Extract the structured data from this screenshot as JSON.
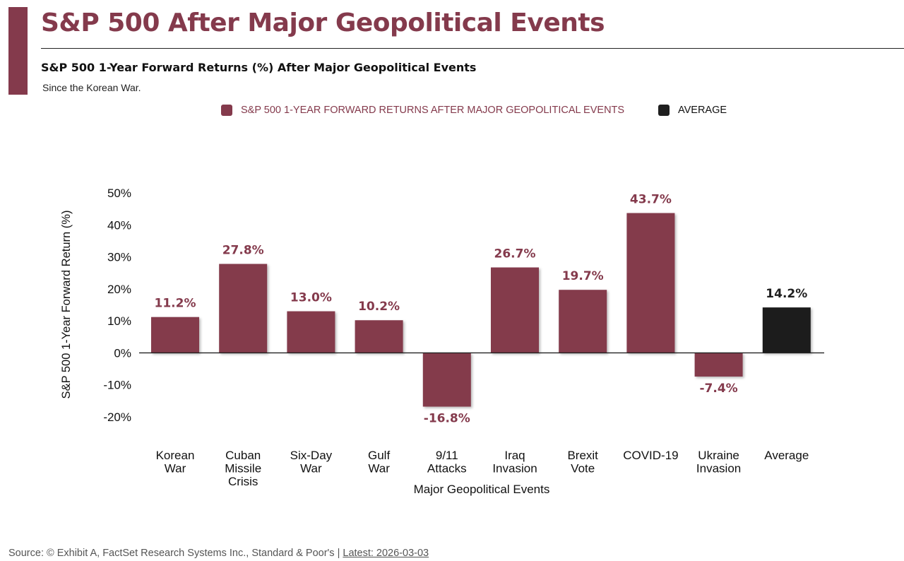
{
  "header": {
    "title": "S&P 500 After Major Geopolitical Events",
    "subtitle": "S&P 500 1-Year Forward Returns (%) After Major Geopolitical Events",
    "note": "Since the Korean War."
  },
  "legend": {
    "series_label": "S&P 500 1-YEAR FORWARD RETURNS AFTER MAJOR GEOPOLITICAL EVENTS",
    "average_label": "AVERAGE"
  },
  "colors": {
    "series": "#843a4c",
    "average": "#1f1f1f",
    "axis": "#222222"
  },
  "chart_data": {
    "type": "bar",
    "title": "S&P 500 1-Year Forward Returns (%) After Major Geopolitical Events",
    "xlabel": "Major Geopolitical Events",
    "ylabel": "S&P 500 1-Year Forward Return (%)",
    "ylim": [
      -20,
      50
    ],
    "yticks": [
      50,
      40,
      30,
      20,
      10,
      0,
      -10,
      -20
    ],
    "ytick_labels": [
      "50%",
      "40%",
      "30%",
      "20%",
      "10%",
      "0%",
      "-10%",
      "-20%"
    ],
    "grid": false,
    "categories": [
      [
        "Korean",
        "War"
      ],
      [
        "Cuban",
        "Missile",
        "Crisis"
      ],
      [
        "Six-Day",
        "War"
      ],
      [
        "Gulf",
        "War"
      ],
      [
        "9/11",
        "Attacks"
      ],
      [
        "Iraq",
        "Invasion"
      ],
      [
        "Brexit",
        "Vote"
      ],
      [
        "COVID-19"
      ],
      [
        "Ukraine",
        "Invasion"
      ],
      [
        "Average"
      ]
    ],
    "values": [
      11.2,
      27.8,
      13.0,
      10.2,
      -16.8,
      26.7,
      19.7,
      43.7,
      -7.4,
      14.2
    ],
    "labels": [
      "11.2%",
      "27.8%",
      "13.0%",
      "10.2%",
      "-16.8%",
      "26.7%",
      "19.7%",
      "43.7%",
      "-7.4%",
      "14.2%"
    ],
    "series_kind": [
      "event",
      "event",
      "event",
      "event",
      "event",
      "event",
      "event",
      "event",
      "event",
      "average"
    ]
  },
  "footer": {
    "source": "Source: © Exhibit A, FactSet Research Systems Inc., Standard & Poor's | ",
    "latest": "Latest: 2026-03-03"
  }
}
